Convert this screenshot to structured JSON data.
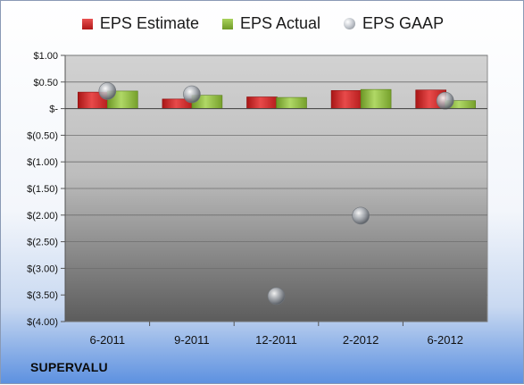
{
  "chart_data": {
    "type": "bar",
    "categories": [
      "6-2011",
      "9-2011",
      "12-2011",
      "2-2012",
      "6-2012"
    ],
    "series": [
      {
        "name": "EPS Estimate",
        "kind": "bar",
        "color": "#d42a2a",
        "values": [
          0.31,
          0.18,
          0.22,
          0.34,
          0.35
        ]
      },
      {
        "name": "EPS Actual",
        "kind": "bar",
        "color": "#8ab83c",
        "values": [
          0.33,
          0.25,
          0.21,
          0.36,
          0.15
        ]
      },
      {
        "name": "EPS GAAP",
        "kind": "marker",
        "color": "#a6abb2",
        "values": [
          0.33,
          0.27,
          -3.52,
          -2.01,
          0.15
        ]
      }
    ],
    "ylim": [
      -4.0,
      1.0
    ],
    "yticks": [
      1.0,
      0.5,
      0.0,
      -0.5,
      -1.0,
      -1.5,
      -2.0,
      -2.5,
      -3.0,
      -3.5,
      -4.0
    ],
    "ytick_labels": [
      "$1.00",
      "$0.50",
      "$-",
      "$(0.50)",
      "$(1.00)",
      "$(1.50)",
      "$(2.00)",
      "$(2.50)",
      "$(3.00)",
      "$(3.50)",
      "$(4.00)"
    ],
    "grid": true,
    "legend": "top",
    "title": "",
    "xlabel": "",
    "ylabel": ""
  },
  "company": "SUPERVALU"
}
